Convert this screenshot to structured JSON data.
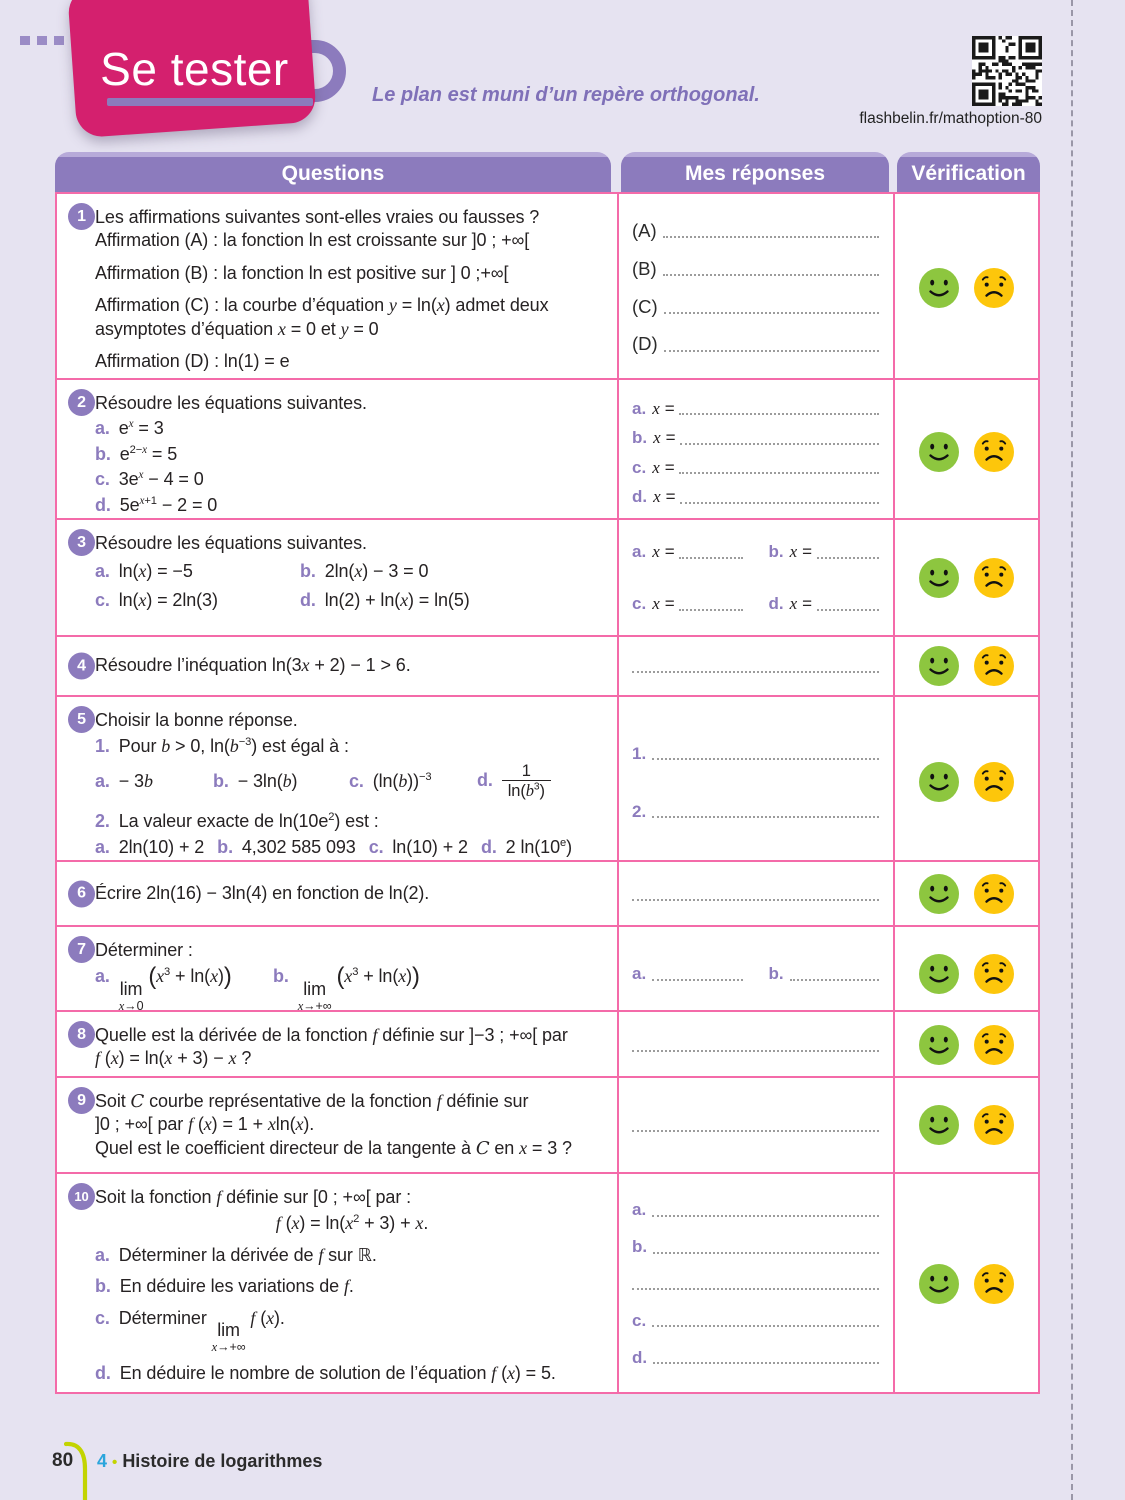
{
  "header": {
    "badge_label": "Se tester",
    "subtitle": "Le plan est muni d’un repère orthogonal.",
    "qr_caption": "flashbelin.fr/mathoption-80",
    "qr_icon": "qr-code-icon"
  },
  "table": {
    "columns": [
      "Questions",
      "Mes réponses",
      "Vérification"
    ],
    "verification_icons": [
      "happy-face-icon",
      "sad-face-icon"
    ]
  },
  "questions": [
    {
      "number": "1",
      "lines": [
        {
          "html": "Les affirmations suivantes sont-elles vraies ou fausses ?"
        },
        {
          "html": "Affirmation (A) : la fonction ln est croissante sur ]0 ; +∞["
        },
        {
          "cls": "g",
          "html": "Affirmation (B) : la fonction ln est positive sur ] 0 ;+∞["
        },
        {
          "cls": "g",
          "html": "Affirmation (C) : la courbe d’équation <i>y</i> = ln(<i>x</i>) admet deux asymptotes d’équation <i>x</i> = 0 et <i>y</i> = 0"
        },
        {
          "cls": "g",
          "html": "Affirmation (D) : ln(1) = e"
        }
      ],
      "answers": {
        "cls": "spread",
        "items": [
          {
            "label": "(A)",
            "dark": true
          },
          {
            "label": "(B)",
            "dark": true
          },
          {
            "label": "(C)",
            "dark": true
          },
          {
            "label": "(D)",
            "dark": true
          }
        ]
      }
    },
    {
      "number": "2",
      "lines": [
        {
          "html": "Résoudre les équations suivantes."
        },
        {
          "cls": "s",
          "html": "<span class='lbl'>a.</span> e<sup><i>x</i></sup> = 3"
        },
        {
          "cls": "s",
          "html": "<span class='lbl'>b.</span> e<sup>2−<i>x</i></sup> = 5"
        },
        {
          "cls": "s",
          "html": "<span class='lbl'>c.</span> 3e<sup><i>x</i></sup> − 4 = 0"
        },
        {
          "cls": "s",
          "html": "<span class='lbl'>d.</span> 5e<sup><i>x</i>+1</sup> − 2 = 0"
        }
      ],
      "answers": {
        "cls": "spread",
        "items": [
          {
            "label": "a.",
            "pre": "<i>x</i> ="
          },
          {
            "label": "b.",
            "pre": "<i>x</i> ="
          },
          {
            "label": "c.",
            "pre": "<i>x</i> ="
          },
          {
            "label": "d.",
            "pre": "<i>x</i> ="
          }
        ]
      }
    },
    {
      "number": "3",
      "lines": [
        {
          "html": "Résoudre les équations suivantes."
        },
        {
          "cls": "s2",
          "html": "<span class='w205'><span class='lbl'>a.</span> ln(<i>x</i>) = −5</span><span class='lbl'>b.</span> 2ln(<i>x</i>) − 3 = 0"
        },
        {
          "cls": "s2",
          "html": "<span class='w205'><span class='lbl'>c.</span> ln(<i>x</i>) = 2ln(3)</span><span class='lbl'>d.</span> ln(2) + ln(<i>x</i>) = ln(5)"
        }
      ],
      "answers": {
        "cls": "grid2",
        "items": [
          {
            "label": "a.",
            "pre": "<i>x</i> ="
          },
          {
            "label": "b.",
            "pre": "<i>x</i> ="
          },
          {
            "label": "c.",
            "pre": "<i>x</i> ="
          },
          {
            "label": "d.",
            "pre": "<i>x</i> ="
          }
        ]
      }
    },
    {
      "number": "4",
      "vcenter": true,
      "lines": [
        {
          "html": "Résoudre l’inéquation ln(3<i>x</i> + 2) − 1 > 6."
        }
      ],
      "answers": {
        "cls": "center",
        "items": [
          {}
        ]
      }
    },
    {
      "number": "5",
      "lines": [
        {
          "html": "Choisir la bonne réponse."
        },
        {
          "cls": "s4",
          "html": "<span class='lbl'>1.</span> Pour <i>b</i> > 0, ln(<i>b</i><sup>−3</sup>) est égal à :"
        },
        {
          "cls": "optrow",
          "html": "<span class='o1'><span class='lbl'>a.</span> − 3<i>b</i></span><span class='o2'><span class='lbl'>b.</span> − 3ln(<i>b</i>)</span><span class='o3'><span class='lbl'>c.</span> (ln(<i>b</i>))<sup>−3</sup></span><span><span class='lbl'>d.</span> <span class='frac'><span class='fn'>1</span><span class='fd'>ln(<i>b</i><sup>3</sup>)</span></span></span>"
        },
        {
          "cls": "g",
          "html": "<span class='lbl'>2.</span> La valeur exacte de ln(10e<sup>2</sup>) est :"
        },
        {
          "cls": "s4",
          "html": "<span class='m14'><span class='lbl'>a.</span> 2ln(10) + 2</span><span class='m14'><span class='lbl'>b.</span> 4,302 585 093</span><span class='m14'><span class='lbl'>c.</span> ln(10) + 2</span><span><span class='lbl'>d.</span> 2 ln(10<sup>e</sup>)</span>"
        }
      ],
      "answers": {
        "cls": "center",
        "items": [
          {
            "label": "1."
          },
          {
            "label": "2."
          }
        ]
      }
    },
    {
      "number": "6",
      "vcenter": true,
      "lines": [
        {
          "html": "Écrire 2ln(16) − 3ln(4) en fonction de ln(2)."
        }
      ],
      "answers": {
        "cls": "center",
        "items": [
          {}
        ]
      }
    },
    {
      "number": "7",
      "lines": [
        {
          "html": "Déterminer :"
        },
        {
          "cls": "s4",
          "html": "<span class='w178'><span class='lbl'>a.</span> <span class='lim'><span>lim</span><span class='ls'><i>x</i>→0</span></span>&nbsp;<span class='bp'>(</span><i>x</i><sup>3</sup> + ln(<i>x</i>)<span class='bp'>)</span></span><span class='lbl'>b.</span> <span class='lim'><span>lim</span><span class='ls'><i>x</i>→+∞</span></span>&nbsp;<span class='bp'>(</span><i>x</i><sup>3</sup> + ln(<i>x</i>)<span class='bp'>)</span>"
        }
      ],
      "answers": {
        "cls": "grid2",
        "items": [
          {
            "label": "a."
          },
          {
            "label": "b."
          }
        ]
      }
    },
    {
      "number": "8",
      "lines": [
        {
          "html": "Quelle est la dérivée de la fonction <i>f</i> définie sur ]−3 ; +∞[ par"
        },
        {
          "html": "<i>f</i> (<i>x</i>) = ln(<i>x</i> + 3) − <i>x</i> ?"
        }
      ],
      "answers": {
        "cls": "center",
        "items": [
          {}
        ]
      }
    },
    {
      "number": "9",
      "lines": [
        {
          "html": "Soit <span class='cal'>C</span> courbe représentative de la fonction <i>f</i> définie sur"
        },
        {
          "html": "]0 ; +∞[ par <i>f</i> (<i>x</i>) = 1 + <i>x</i>ln(<i>x</i>)."
        },
        {
          "html": "Quel est le coefficient directeur de la tangente à <span class='cal'>C</span> en <i>x</i> = 3 ?"
        }
      ],
      "answers": {
        "cls": "center",
        "items": [
          {}
        ]
      }
    },
    {
      "number": "10",
      "lines": [
        {
          "html": "Soit la fonction <i>f</i> définie sur [0 ; +∞[ par :"
        },
        {
          "cls": "center s4",
          "html": "<i>f</i> (<i>x</i>) = ln(<i>x</i><sup>2</sup> + 3) + <i>x</i>."
        },
        {
          "cls": "g2",
          "html": "<span class='lbl'>a.</span> Déterminer la dérivée de <i>f</i> sur <span class='bb'>ℝ</span>."
        },
        {
          "cls": "g2",
          "html": "<span class='lbl'>b.</span> En déduire les variations de <i>f</i>."
        },
        {
          "cls": "g2",
          "html": "<span class='lbl'>c.</span> Déterminer <span class='lim'><span>lim</span><span class='ls'><i>x</i>→+∞</span></span> <i>f</i> (<i>x</i>)."
        },
        {
          "cls": "g2",
          "html": "<span class='lbl'>d.</span> En déduire le nombre de solution de l’équation <i>f</i> (<i>x</i>) = 5."
        }
      ],
      "answers": {
        "cls": "spread",
        "items": [
          {
            "label": "a."
          },
          {
            "label": "b."
          },
          {},
          {
            "label": "c."
          },
          {
            "label": "d."
          }
        ]
      }
    }
  ],
  "footer": {
    "page_number": "80",
    "chapter_number": "4",
    "bullet": "•",
    "chapter_title": "Histoire de logarithmes"
  },
  "colors": {
    "background": "#e6e3f1",
    "badge_pink": "#d4206e",
    "accent_purple": "#8c7bbd",
    "row_border_pink": "#f46ba9",
    "smiley_green": "#8dc63f",
    "smiley_yellow": "#fdc60b",
    "footer_cyan": "#2aa5dc",
    "footer_green": "#c3d400"
  }
}
